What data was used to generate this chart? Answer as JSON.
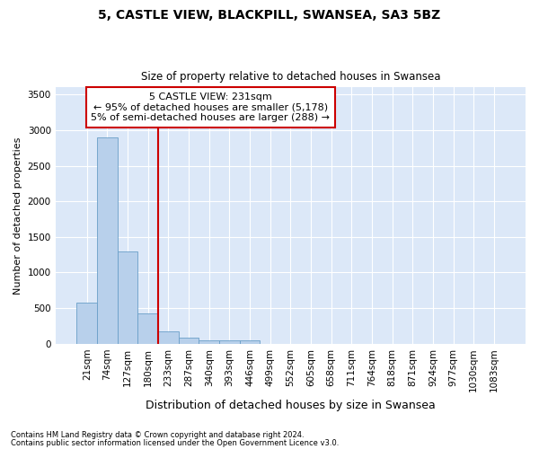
{
  "title_line1": "5, CASTLE VIEW, BLACKPILL, SWANSEA, SA3 5BZ",
  "title_line2": "Size of property relative to detached houses in Swansea",
  "xlabel": "Distribution of detached houses by size in Swansea",
  "ylabel": "Number of detached properties",
  "footnote1": "Contains HM Land Registry data © Crown copyright and database right 2024.",
  "footnote2": "Contains public sector information licensed under the Open Government Licence v3.0.",
  "categories": [
    "21sqm",
    "74sqm",
    "127sqm",
    "180sqm",
    "233sqm",
    "287sqm",
    "340sqm",
    "393sqm",
    "446sqm",
    "499sqm",
    "552sqm",
    "605sqm",
    "658sqm",
    "711sqm",
    "764sqm",
    "818sqm",
    "871sqm",
    "924sqm",
    "977sqm",
    "1030sqm",
    "1083sqm"
  ],
  "values": [
    580,
    2900,
    1300,
    420,
    175,
    80,
    50,
    50,
    50,
    0,
    0,
    0,
    0,
    0,
    0,
    0,
    0,
    0,
    0,
    0,
    0
  ],
  "bar_color": "#b8d0eb",
  "bar_edge_color": "#6a9fc8",
  "property_label": "5 CASTLE VIEW: 231sqm",
  "annotation_line2": "← 95% of detached houses are smaller (5,178)",
  "annotation_line3": "5% of semi-detached houses are larger (288) →",
  "vline_color": "#cc0000",
  "annotation_box_color": "#cc0000",
  "fig_bg_color": "#ffffff",
  "plot_bg_color": "#dce8f8",
  "ylim": [
    0,
    3600
  ],
  "yticks": [
    0,
    500,
    1000,
    1500,
    2000,
    2500,
    3000,
    3500
  ],
  "vline_x": 3.5
}
